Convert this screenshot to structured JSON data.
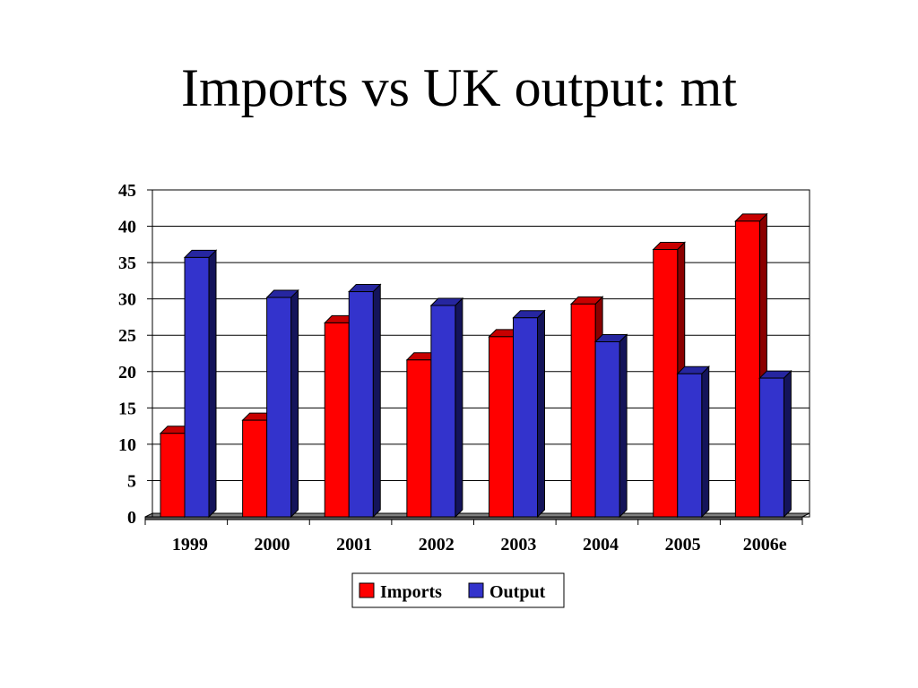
{
  "slide": {
    "title": "Imports vs UK output: mt"
  },
  "chart_data": {
    "type": "bar",
    "title": "Imports vs UK output: mt",
    "xlabel": "",
    "ylabel": "",
    "categories": [
      "1999",
      "2000",
      "2001",
      "2002",
      "2003",
      "2004",
      "2005",
      "2006e"
    ],
    "series": [
      {
        "name": "Imports",
        "color": "#ff0000",
        "side_color": "#8b0000",
        "top_color": "#c80000",
        "values": [
          11.5,
          13.3,
          26.7,
          21.6,
          24.8,
          29.3,
          36.8,
          40.7
        ]
      },
      {
        "name": "Output",
        "color": "#3333cc",
        "side_color": "#14145a",
        "top_color": "#2626a0",
        "values": [
          35.7,
          30.2,
          31.0,
          29.1,
          27.4,
          24.1,
          19.7,
          19.1
        ]
      }
    ],
    "ylim": [
      0,
      45
    ],
    "yticks": [
      "0",
      "5",
      "10",
      "15",
      "20",
      "25",
      "30",
      "35",
      "40",
      "45"
    ],
    "grid": true,
    "legend_position": "bottom-center",
    "style": "3d-clustered-bar"
  }
}
